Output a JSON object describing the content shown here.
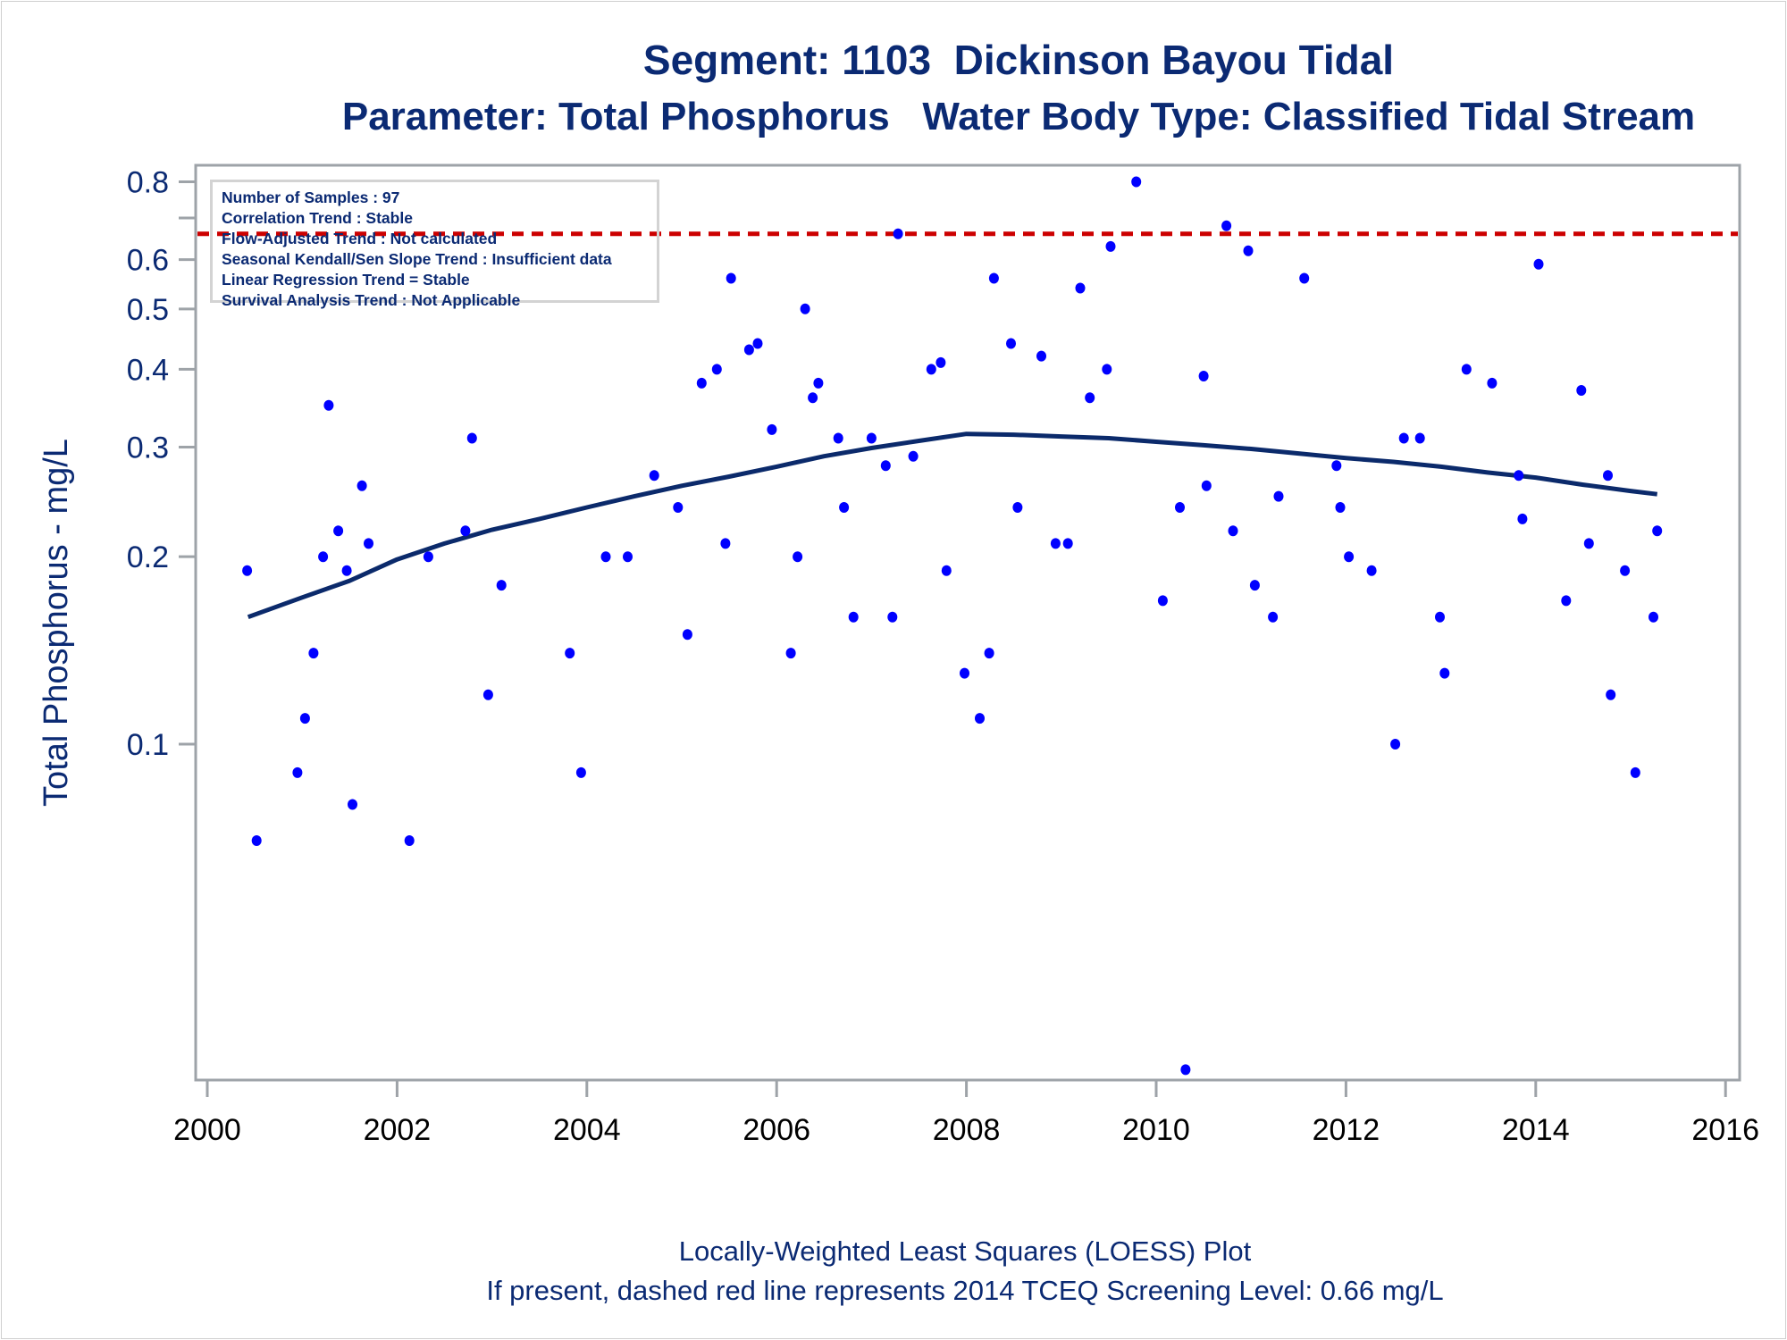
{
  "chart_data": {
    "type": "scatter",
    "title": "Segment: 1103  Dickinson Bayou Tidal",
    "subtitle": "Parameter: Total Phosphorus   Water Body Type: Classified Tidal Stream",
    "xlabel": "",
    "ylabel": "Total Phosphorus - mg/L",
    "yscale": "log",
    "xlim": [
      2000,
      2016
    ],
    "ylim": [
      0.029,
      0.85
    ],
    "x_ticks": [
      2000,
      2002,
      2004,
      2006,
      2008,
      2010,
      2012,
      2014,
      2016
    ],
    "x_tick_labels": [
      "2000",
      "2002",
      "2004",
      "2006",
      "2008",
      "2010",
      "2012",
      "2014",
      "2016"
    ],
    "y_ticks": [
      0.1,
      0.2,
      0.3,
      0.4,
      0.5,
      0.6,
      0.7,
      0.8
    ],
    "y_tick_labels": [
      "0.1",
      "0.2",
      "0.3",
      "0.4",
      "0.5",
      "0.6",
      "",
      "0.8"
    ],
    "grid": false,
    "screening_level": {
      "value": 0.66,
      "color": "#cc0000",
      "style": "dashed"
    },
    "colors": {
      "points": "#0000ff",
      "loess": "#0b2a6b",
      "text": "#0b2a73",
      "axis": "#9ea3a8"
    },
    "series": [
      {
        "name": "Samples",
        "type": "scatter",
        "points": [
          [
            2000.42,
            0.19
          ],
          [
            2000.52,
            0.07
          ],
          [
            2000.95,
            0.09
          ],
          [
            2001.03,
            0.11
          ],
          [
            2001.12,
            0.14
          ],
          [
            2001.22,
            0.2
          ],
          [
            2001.28,
            0.35
          ],
          [
            2001.38,
            0.22
          ],
          [
            2001.47,
            0.19
          ],
          [
            2001.53,
            0.08
          ],
          [
            2001.63,
            0.26
          ],
          [
            2001.7,
            0.21
          ],
          [
            2002.13,
            0.07
          ],
          [
            2002.33,
            0.2
          ],
          [
            2002.72,
            0.22
          ],
          [
            2002.79,
            0.31
          ],
          [
            2002.96,
            0.12
          ],
          [
            2003.1,
            0.18
          ],
          [
            2003.82,
            0.14
          ],
          [
            2003.94,
            0.09
          ],
          [
            2004.2,
            0.2
          ],
          [
            2004.43,
            0.2
          ],
          [
            2004.71,
            0.27
          ],
          [
            2004.96,
            0.24
          ],
          [
            2005.06,
            0.15
          ],
          [
            2005.21,
            0.38
          ],
          [
            2005.37,
            0.4
          ],
          [
            2005.46,
            0.21
          ],
          [
            2005.52,
            0.56
          ],
          [
            2005.71,
            0.43
          ],
          [
            2005.8,
            0.44
          ],
          [
            2005.95,
            0.32
          ],
          [
            2006.15,
            0.14
          ],
          [
            2006.22,
            0.2
          ],
          [
            2006.3,
            0.5
          ],
          [
            2006.38,
            0.36
          ],
          [
            2006.44,
            0.38
          ],
          [
            2006.65,
            0.31
          ],
          [
            2006.71,
            0.24
          ],
          [
            2006.81,
            0.16
          ],
          [
            2007.0,
            0.31
          ],
          [
            2007.15,
            0.28
          ],
          [
            2007.22,
            0.16
          ],
          [
            2007.28,
            0.66
          ],
          [
            2007.44,
            0.29
          ],
          [
            2007.63,
            0.4
          ],
          [
            2007.73,
            0.41
          ],
          [
            2007.79,
            0.19
          ],
          [
            2007.98,
            0.13
          ],
          [
            2008.14,
            0.11
          ],
          [
            2008.24,
            0.14
          ],
          [
            2008.29,
            0.56
          ],
          [
            2008.47,
            0.44
          ],
          [
            2008.54,
            0.24
          ],
          [
            2008.79,
            0.42
          ],
          [
            2008.94,
            0.21
          ],
          [
            2009.07,
            0.21
          ],
          [
            2009.2,
            0.54
          ],
          [
            2009.3,
            0.36
          ],
          [
            2009.48,
            0.4
          ],
          [
            2009.52,
            0.63
          ],
          [
            2009.79,
            0.8
          ],
          [
            2010.07,
            0.17
          ],
          [
            2010.25,
            0.24
          ],
          [
            2010.31,
            0.03
          ],
          [
            2010.5,
            0.39
          ],
          [
            2010.53,
            0.26
          ],
          [
            2010.74,
            0.68
          ],
          [
            2010.81,
            0.22
          ],
          [
            2010.97,
            0.62
          ],
          [
            2011.04,
            0.18
          ],
          [
            2011.23,
            0.16
          ],
          [
            2011.29,
            0.25
          ],
          [
            2011.56,
            0.56
          ],
          [
            2011.9,
            0.28
          ],
          [
            2011.94,
            0.24
          ],
          [
            2012.03,
            0.2
          ],
          [
            2012.27,
            0.19
          ],
          [
            2012.52,
            0.1
          ],
          [
            2012.61,
            0.31
          ],
          [
            2012.78,
            0.31
          ],
          [
            2012.99,
            0.16
          ],
          [
            2013.04,
            0.13
          ],
          [
            2013.27,
            0.4
          ],
          [
            2013.54,
            0.38
          ],
          [
            2013.82,
            0.27
          ],
          [
            2013.86,
            0.23
          ],
          [
            2014.03,
            0.59
          ],
          [
            2014.32,
            0.17
          ],
          [
            2014.48,
            0.37
          ],
          [
            2014.56,
            0.21
          ],
          [
            2014.76,
            0.27
          ],
          [
            2014.79,
            0.12
          ],
          [
            2014.94,
            0.19
          ],
          [
            2015.05,
            0.09
          ],
          [
            2015.24,
            0.16
          ],
          [
            2015.28,
            0.22
          ]
        ]
      },
      {
        "name": "LOESS",
        "type": "line",
        "points": [
          [
            2000.43,
            0.16
          ],
          [
            2001.0,
            0.172
          ],
          [
            2001.5,
            0.183
          ],
          [
            2002.0,
            0.198
          ],
          [
            2002.5,
            0.21
          ],
          [
            2003.0,
            0.221
          ],
          [
            2003.5,
            0.23
          ],
          [
            2004.0,
            0.24
          ],
          [
            2004.5,
            0.25
          ],
          [
            2005.0,
            0.26
          ],
          [
            2005.5,
            0.269
          ],
          [
            2006.0,
            0.279
          ],
          [
            2006.5,
            0.29
          ],
          [
            2007.0,
            0.299
          ],
          [
            2007.5,
            0.307
          ],
          [
            2008.0,
            0.315
          ],
          [
            2008.5,
            0.314
          ],
          [
            2009.0,
            0.312
          ],
          [
            2009.5,
            0.31
          ],
          [
            2010.0,
            0.306
          ],
          [
            2010.5,
            0.302
          ],
          [
            2011.0,
            0.298
          ],
          [
            2011.5,
            0.293
          ],
          [
            2012.0,
            0.288
          ],
          [
            2012.5,
            0.284
          ],
          [
            2013.0,
            0.279
          ],
          [
            2013.5,
            0.273
          ],
          [
            2014.0,
            0.268
          ],
          [
            2014.5,
            0.261
          ],
          [
            2015.0,
            0.255
          ],
          [
            2015.28,
            0.252
          ]
        ]
      }
    ],
    "annotations": [
      "Number of Samples : 97",
      "Correlation Trend : Stable",
      "Flow-Adjusted Trend : Not calculated",
      "Seasonal Kendall/Sen Slope Trend : Insufficient data",
      "Linear Regression Trend = Stable",
      "Survival Analysis Trend : Not Applicable"
    ],
    "footnotes": [
      "Locally-Weighted Least Squares (LOESS) Plot",
      "If present, dashed red line represents 2014 TCEQ Screening Level: 0.66 mg/L"
    ]
  }
}
